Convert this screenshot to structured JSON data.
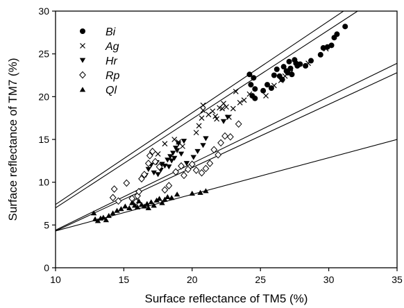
{
  "chart_data": {
    "type": "scatter",
    "xlabel": "Surface reflectance of TM5 (%)",
    "ylabel": "Surface reflectance of TM7 (%)",
    "xlim": [
      10,
      35
    ],
    "ylim": [
      0,
      30
    ],
    "xticks": [
      10,
      15,
      20,
      25,
      30,
      35
    ],
    "yticks": [
      0,
      5,
      10,
      15,
      20,
      25,
      30
    ],
    "grid": false,
    "legend_position": "top-left",
    "series": [
      {
        "name": "Bi",
        "marker": "circle-filled",
        "points": [
          [
            24.2,
            22.6
          ],
          [
            24.5,
            22.2
          ],
          [
            24.3,
            21.4
          ],
          [
            24.6,
            20.9
          ],
          [
            24.4,
            20.1
          ],
          [
            24.6,
            19.8
          ],
          [
            25.2,
            20.7
          ],
          [
            25.5,
            21.4
          ],
          [
            25.8,
            21.0
          ],
          [
            26.0,
            22.5
          ],
          [
            26.2,
            23.2
          ],
          [
            26.4,
            22.4
          ],
          [
            26.6,
            22.0
          ],
          [
            26.7,
            23.5
          ],
          [
            26.9,
            23.0
          ],
          [
            27.0,
            22.8
          ],
          [
            27.1,
            24.1
          ],
          [
            27.2,
            23.3
          ],
          [
            27.3,
            22.6
          ],
          [
            27.5,
            24.3
          ],
          [
            27.6,
            23.9
          ],
          [
            27.7,
            23.6
          ],
          [
            27.9,
            23.8
          ],
          [
            28.3,
            23.6
          ],
          [
            28.7,
            24.2
          ],
          [
            29.4,
            24.9
          ],
          [
            29.6,
            25.7
          ],
          [
            29.9,
            25.8
          ],
          [
            30.2,
            26.0
          ],
          [
            30.4,
            26.9
          ],
          [
            30.6,
            27.3
          ],
          [
            31.2,
            28.2
          ]
        ]
      },
      {
        "name": "Ag",
        "marker": "cross",
        "points": [
          [
            17.5,
            13.3
          ],
          [
            18.0,
            14.5
          ],
          [
            18.7,
            15.0
          ],
          [
            19.0,
            14.7
          ],
          [
            19.3,
            14.2
          ],
          [
            20.3,
            15.8
          ],
          [
            20.5,
            16.6
          ],
          [
            20.7,
            17.5
          ],
          [
            20.8,
            18.4
          ],
          [
            20.8,
            19.0
          ],
          [
            21.2,
            17.9
          ],
          [
            21.5,
            18.3
          ],
          [
            21.7,
            17.7
          ],
          [
            21.8,
            17.4
          ],
          [
            22.0,
            18.7
          ],
          [
            22.2,
            18.6
          ],
          [
            22.3,
            19.2
          ],
          [
            22.5,
            18.8
          ],
          [
            22.7,
            17.6
          ],
          [
            23.0,
            18.6
          ],
          [
            23.2,
            20.6
          ],
          [
            23.5,
            19.3
          ],
          [
            23.8,
            19.6
          ],
          [
            24.2,
            20.3
          ],
          [
            25.4,
            20.1
          ],
          [
            26.0,
            21.3
          ],
          [
            26.5,
            21.9
          ],
          [
            26.8,
            22.4
          ],
          [
            27.2,
            22.8
          ],
          [
            28.5,
            23.9
          ],
          [
            29.8,
            25.6
          ]
        ]
      },
      {
        "name": "Hr",
        "marker": "triangle-down-filled",
        "points": [
          [
            16.4,
            10.5
          ],
          [
            16.6,
            10.8
          ],
          [
            16.8,
            11.5
          ],
          [
            17.0,
            12.0
          ],
          [
            17.2,
            11.1
          ],
          [
            17.4,
            12.3
          ],
          [
            17.5,
            10.9
          ],
          [
            17.7,
            11.4
          ],
          [
            17.8,
            12.1
          ],
          [
            18.0,
            11.9
          ],
          [
            18.2,
            12.6
          ],
          [
            18.3,
            11.8
          ],
          [
            18.4,
            13.0
          ],
          [
            18.5,
            12.5
          ],
          [
            18.6,
            13.4
          ],
          [
            18.7,
            12.8
          ],
          [
            18.8,
            14.0
          ],
          [
            18.9,
            13.7
          ],
          [
            19.0,
            14.5
          ],
          [
            19.2,
            13.3
          ],
          [
            19.4,
            14.8
          ],
          [
            19.6,
            12.2
          ],
          [
            20.1,
            12.9
          ],
          [
            20.4,
            13.6
          ],
          [
            20.8,
            14.3
          ],
          [
            21.0,
            15.1
          ],
          [
            22.3,
            17.1
          ],
          [
            22.6,
            17.6
          ]
        ]
      },
      {
        "name": "Rp",
        "marker": "diamond-open",
        "points": [
          [
            14.2,
            8.2
          ],
          [
            14.3,
            9.2
          ],
          [
            14.6,
            7.8
          ],
          [
            15.2,
            9.9
          ],
          [
            15.6,
            8.1
          ],
          [
            15.9,
            7.7
          ],
          [
            16.0,
            8.4
          ],
          [
            16.1,
            8.9
          ],
          [
            16.3,
            10.4
          ],
          [
            16.5,
            10.9
          ],
          [
            16.8,
            12.2
          ],
          [
            16.9,
            13.1
          ],
          [
            17.1,
            13.6
          ],
          [
            17.3,
            12.4
          ],
          [
            17.6,
            11.8
          ],
          [
            18.0,
            9.1
          ],
          [
            18.3,
            9.6
          ],
          [
            18.8,
            11.2
          ],
          [
            19.2,
            11.9
          ],
          [
            19.4,
            10.8
          ],
          [
            19.7,
            11.5
          ],
          [
            20.0,
            12.1
          ],
          [
            20.3,
            11.4
          ],
          [
            20.7,
            11.1
          ],
          [
            21.0,
            11.6
          ],
          [
            21.3,
            12.2
          ],
          [
            21.6,
            13.8
          ],
          [
            21.9,
            13.2
          ],
          [
            22.1,
            14.6
          ],
          [
            22.4,
            15.4
          ],
          [
            22.8,
            15.3
          ],
          [
            23.4,
            16.8
          ]
        ]
      },
      {
        "name": "Ql",
        "marker": "triangle-up-filled",
        "points": [
          [
            12.8,
            6.4
          ],
          [
            12.9,
            5.7
          ],
          [
            13.1,
            5.5
          ],
          [
            13.3,
            5.8
          ],
          [
            13.5,
            5.9
          ],
          [
            13.7,
            5.6
          ],
          [
            13.9,
            6.1
          ],
          [
            14.2,
            6.4
          ],
          [
            14.5,
            6.7
          ],
          [
            14.8,
            6.9
          ],
          [
            15.1,
            7.2
          ],
          [
            15.4,
            7.0
          ],
          [
            15.6,
            7.6
          ],
          [
            15.8,
            7.3
          ],
          [
            16.0,
            7.1
          ],
          [
            16.1,
            7.8
          ],
          [
            16.3,
            7.4
          ],
          [
            16.5,
            7.2
          ],
          [
            16.7,
            7.5
          ],
          [
            16.8,
            7.0
          ],
          [
            17.0,
            7.7
          ],
          [
            17.2,
            7.3
          ],
          [
            17.4,
            7.9
          ],
          [
            17.6,
            8.1
          ],
          [
            17.8,
            7.6
          ],
          [
            18.0,
            8.0
          ],
          [
            18.2,
            8.3
          ],
          [
            18.5,
            8.2
          ],
          [
            18.9,
            8.6
          ],
          [
            20.0,
            8.7
          ],
          [
            20.6,
            8.8
          ],
          [
            21.0,
            9.0
          ]
        ]
      }
    ],
    "regression_lines": [
      {
        "x": [
          10,
          35
        ],
        "y": [
          7.4,
          34.2
        ]
      },
      {
        "x": [
          10,
          35
        ],
        "y": [
          7.0,
          33.0
        ]
      },
      {
        "x": [
          10,
          35
        ],
        "y": [
          4.4,
          23.9
        ]
      },
      {
        "x": [
          10,
          35
        ],
        "y": [
          4.3,
          22.8
        ]
      },
      {
        "x": [
          10,
          35
        ],
        "y": [
          4.3,
          15.0
        ]
      }
    ]
  }
}
